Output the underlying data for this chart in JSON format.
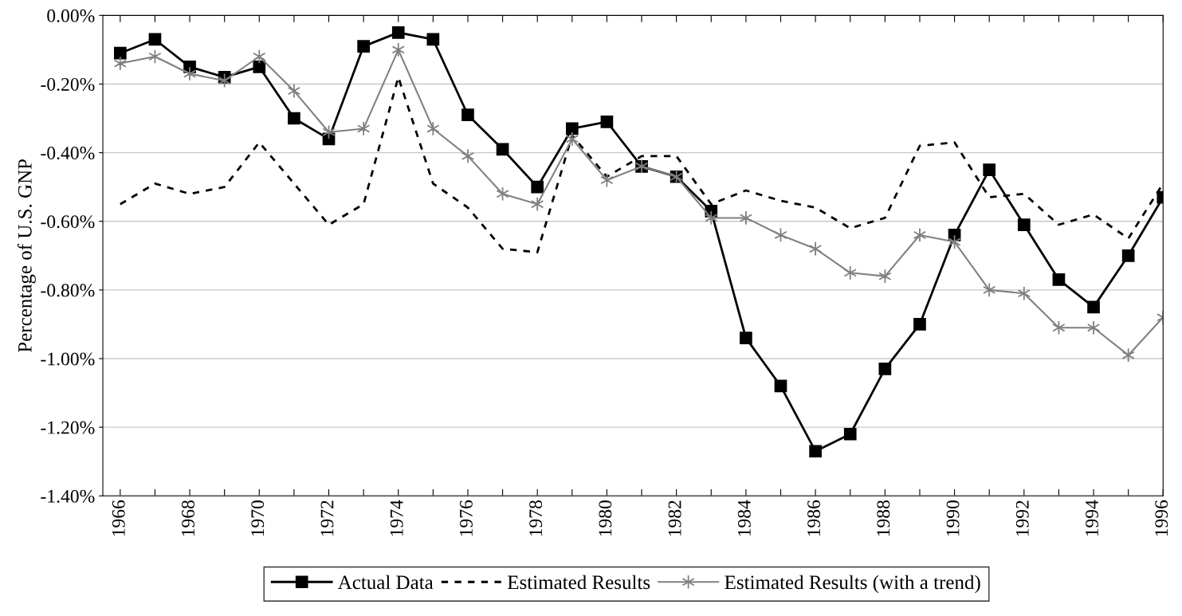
{
  "chart_data": {
    "type": "line",
    "ylabel": "Percentage of U.S. GNP",
    "x": [
      1966,
      1967,
      1968,
      1969,
      1970,
      1971,
      1972,
      1973,
      1974,
      1975,
      1976,
      1977,
      1978,
      1979,
      1980,
      1981,
      1982,
      1983,
      1984,
      1985,
      1986,
      1987,
      1988,
      1989,
      1990,
      1991,
      1992,
      1993,
      1994,
      1995,
      1996
    ],
    "xlim": [
      1965.5,
      1996
    ],
    "xticks": [
      1966,
      {
        "value": 1967,
        "label": null
      },
      1968,
      {
        "value": 1969,
        "label": null
      },
      1970,
      {
        "value": 1971,
        "label": null
      },
      1972,
      {
        "value": 1973,
        "label": null
      },
      1974,
      {
        "value": 1975,
        "label": null
      },
      1976,
      {
        "value": 1977,
        "label": null
      },
      1978,
      {
        "value": 1979,
        "label": null
      },
      1980,
      {
        "value": 1981,
        "label": null
      },
      1982,
      {
        "value": 1983,
        "label": null
      },
      1984,
      {
        "value": 1985,
        "label": null
      },
      1986,
      {
        "value": 1987,
        "label": null
      },
      1988,
      {
        "value": 1989,
        "label": null
      },
      1990,
      {
        "value": 1991,
        "label": null
      },
      1992,
      {
        "value": 1993,
        "label": null
      },
      1994,
      {
        "value": 1995,
        "label": null
      },
      1996
    ],
    "ylim": [
      -1.4,
      0
    ],
    "yticks": [
      {
        "value": 0,
        "label": "0.00%"
      },
      {
        "value": -0.2,
        "label": "-0.20%"
      },
      {
        "value": -0.4,
        "label": "-0.40%"
      },
      {
        "value": -0.6,
        "label": "-0.60%"
      },
      {
        "value": -0.8,
        "label": "-0.80%"
      },
      {
        "value": -1.0,
        "label": "-1.00%"
      },
      {
        "value": -1.2,
        "label": "-1.20%"
      },
      {
        "value": -1.4,
        "label": "-1.40%"
      }
    ],
    "grid": "y",
    "legend": "bottom",
    "series": [
      {
        "name": "Actual Data",
        "color": "#000000",
        "marker": "square",
        "line_style": "solid",
        "values": [
          -0.11,
          -0.07,
          -0.15,
          -0.18,
          -0.15,
          -0.3,
          -0.36,
          -0.09,
          -0.05,
          -0.07,
          -0.29,
          -0.39,
          -0.5,
          -0.33,
          -0.31,
          -0.44,
          -0.47,
          -0.57,
          -0.94,
          -1.08,
          -1.27,
          -1.22,
          -1.03,
          -0.9,
          -0.64,
          -0.45,
          -0.61,
          -0.77,
          -0.85,
          -0.7,
          -0.53
        ]
      },
      {
        "name": "Estimated Results",
        "color": "#000000",
        "marker": "none",
        "line_style": "dashed",
        "values": [
          -0.55,
          -0.49,
          -0.52,
          -0.5,
          -0.37,
          -0.49,
          -0.61,
          -0.55,
          -0.18,
          -0.49,
          -0.56,
          -0.68,
          -0.69,
          -0.35,
          -0.47,
          -0.41,
          -0.41,
          -0.55,
          -0.51,
          -0.54,
          -0.56,
          -0.62,
          -0.59,
          -0.38,
          -0.37,
          -0.53,
          -0.52,
          -0.61,
          -0.58,
          -0.65,
          -0.49
        ]
      },
      {
        "name": "Estimated Results (with a trend)",
        "color": "#808080",
        "marker": "cross",
        "line_style": "solid",
        "values": [
          -0.14,
          -0.12,
          -0.17,
          -0.19,
          -0.12,
          -0.22,
          -0.34,
          -0.33,
          -0.1,
          -0.33,
          -0.41,
          -0.52,
          -0.55,
          -0.36,
          -0.48,
          -0.44,
          -0.47,
          -0.59,
          -0.59,
          -0.64,
          -0.68,
          -0.75,
          -0.76,
          -0.64,
          -0.66,
          -0.8,
          -0.81,
          -0.91,
          -0.91,
          -0.99,
          -0.88
        ]
      }
    ]
  }
}
